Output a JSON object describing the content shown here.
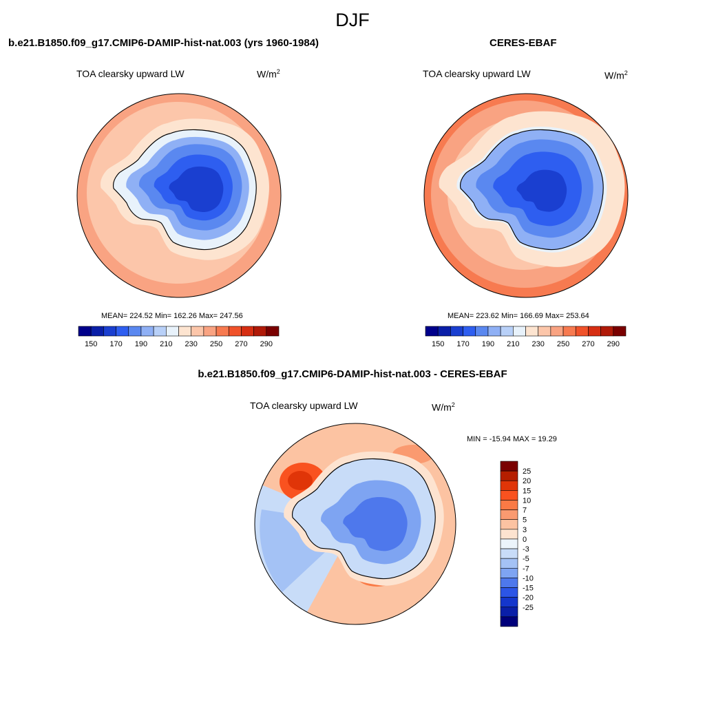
{
  "figure": {
    "title": "DJF"
  },
  "panels": [
    {
      "id": "model",
      "case_title": "b.e21.B1850.f09_g17.CMIP6-DAMIP-hist-nat.003 (yrs 1960-1984)",
      "variable": "TOA clearsky upward LW",
      "units_base": "W/m",
      "units_exp": "2",
      "stats": "MEAN= 224.52  Min= 162.26  Max= 247.56"
    },
    {
      "id": "obs",
      "case_title": "CERES-EBAF",
      "variable": "TOA clearsky upward LW",
      "units_base": "W/m",
      "units_exp": "2",
      "stats": "MEAN= 223.62  Min= 166.69  Max= 253.64"
    },
    {
      "id": "diff",
      "case_title": "b.e21.B1850.f09_g17.CMIP6-DAMIP-hist-nat.003 - CERES-EBAF",
      "variable": "TOA clearsky upward LW",
      "units_base": "W/m",
      "units_exp": "2",
      "stats": "MIN = -15.94 MAX =  19.29"
    }
  ],
  "colorbar_abs": {
    "colors": [
      "#00008b",
      "#0a1fa8",
      "#1a3fd0",
      "#2e5ef0",
      "#5a88f0",
      "#8fb0f5",
      "#b8d0f8",
      "#e8f2fb",
      "#fde4d0",
      "#fcc6aa",
      "#f9a382",
      "#f77a50",
      "#f0522a",
      "#d62e12",
      "#b01a08",
      "#7a0000"
    ],
    "tick_labels": [
      "150",
      "170",
      "190",
      "210",
      "230",
      "250",
      "270",
      "290"
    ]
  },
  "colorbar_diff": {
    "colors": [
      "#7a0000",
      "#b51e00",
      "#e03508",
      "#f9521f",
      "#fa7a45",
      "#fa9a70",
      "#fcc3a2",
      "#fde3d0",
      "#ecf4fb",
      "#c8dcf8",
      "#a4c2f5",
      "#7ea4f2",
      "#4e78ec",
      "#2c55e6",
      "#1436cc",
      "#0a1fa8",
      "#00007a"
    ],
    "tick_labels": [
      "25",
      "20",
      "15",
      "10",
      "7",
      "5",
      "3",
      "0",
      "-3",
      "-5",
      "-7",
      "-10",
      "-15",
      "-20",
      "-25"
    ]
  }
}
